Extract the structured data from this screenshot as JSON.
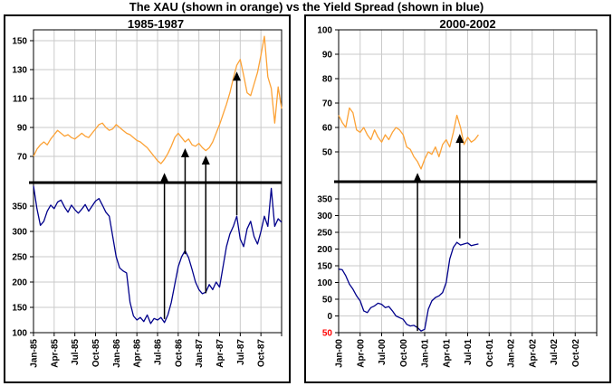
{
  "page_title": "The XAU (shown in orange) vs the Yield Spread (shown in blue)",
  "colors": {
    "xau_orange": "#FCA236",
    "spread_blue": "#00008B",
    "grid": "#CACACA",
    "axis": "#000000",
    "negative_tick_red": "#FF0000",
    "background": "#FFFFFF"
  },
  "chart_data": [
    {
      "type": "line",
      "title": "1985-1987",
      "x_tick_labels": [
        "Jan-85",
        "Apr-85",
        "Jul-85",
        "Oct-85",
        "Jan-86",
        "Apr-86",
        "Jul-86",
        "Oct-86",
        "Jan-87",
        "Apr-87",
        "Jul-87",
        "Oct-87"
      ],
      "x_months_span": 36,
      "points_per_month": 2,
      "upper_axis": {
        "series": "XAU",
        "ticks": [
          150,
          130,
          110,
          90,
          70
        ]
      },
      "lower_axis": {
        "series": "Yield Spread",
        "ticks": [
          350,
          300,
          250,
          200,
          150,
          100
        ]
      },
      "series": [
        {
          "name": "Yield Spread",
          "axis": "lower",
          "color_key": "spread_blue",
          "values": [
            390,
            345,
            312,
            320,
            340,
            352,
            345,
            358,
            362,
            348,
            338,
            352,
            343,
            336,
            344,
            353,
            340,
            350,
            360,
            365,
            352,
            338,
            330,
            290,
            250,
            228,
            222,
            218,
            160,
            133,
            125,
            130,
            122,
            135,
            118,
            128,
            125,
            130,
            120,
            135,
            160,
            195,
            230,
            250,
            262,
            248,
            225,
            200,
            185,
            177,
            180,
            195,
            185,
            200,
            190,
            230,
            270,
            295,
            310,
            330,
            285,
            270,
            305,
            320,
            290,
            275,
            300,
            330,
            310,
            385,
            310,
            325,
            318
          ]
        },
        {
          "name": "XAU",
          "axis": "upper",
          "color_key": "xau_orange",
          "values": [
            70,
            75,
            78,
            80,
            78,
            82,
            85,
            88,
            86,
            84,
            85,
            83,
            82,
            84,
            86,
            84,
            83,
            86,
            89,
            92,
            93,
            90,
            88,
            89,
            92,
            90,
            88,
            86,
            85,
            83,
            81,
            80,
            78,
            76,
            73,
            70,
            67,
            65,
            68,
            72,
            77,
            83,
            86,
            83,
            80,
            82,
            78,
            77,
            79,
            76,
            74,
            76,
            80,
            86,
            92,
            99,
            106,
            114,
            124,
            133,
            137,
            126,
            114,
            112,
            120,
            128,
            140,
            153,
            125,
            117,
            93,
            118,
            103
          ]
        }
      ],
      "arrows": [
        {
          "x_month": 19.0,
          "from_value": 127,
          "to_value": 58
        },
        {
          "x_month": 22.0,
          "from_value": 255,
          "to_value": 75
        },
        {
          "x_month": 25.0,
          "from_value": 178,
          "to_value": 70
        },
        {
          "x_month": 29.5,
          "from_value": 332,
          "to_value": 128
        }
      ]
    },
    {
      "type": "line",
      "title": "2000-2002",
      "x_tick_labels": [
        "Jan-00",
        "Apr-00",
        "Jul-00",
        "Oct-00",
        "Jan-01",
        "Apr-01",
        "Jul-01",
        "Oct-01",
        "Jan-02",
        "Apr-02",
        "Jul-02",
        "Oct-02"
      ],
      "x_months_span": 36,
      "points_per_month": 2,
      "upper_axis": {
        "series": "XAU",
        "ticks": [
          100,
          90,
          80,
          70,
          60,
          50
        ]
      },
      "lower_axis": {
        "series": "Yield Spread",
        "ticks": [
          350,
          300,
          250,
          200,
          150,
          100,
          50,
          0,
          -50
        ]
      },
      "series": [
        {
          "name": "Yield Spread",
          "axis": "lower",
          "color_key": "spread_blue",
          "values": [
            140,
            138,
            120,
            95,
            80,
            60,
            45,
            15,
            10,
            25,
            30,
            38,
            35,
            25,
            28,
            15,
            0,
            -5,
            -10,
            -25,
            -30,
            -28,
            -35,
            -45,
            -40,
            20,
            45,
            55,
            60,
            70,
            100,
            170,
            205,
            220,
            212,
            215,
            218,
            210,
            213,
            215
          ]
        },
        {
          "name": "XAU",
          "axis": "upper",
          "color_key": "xau_orange",
          "values": [
            65,
            62,
            60,
            68,
            66,
            59,
            58,
            60,
            57,
            55,
            59,
            56,
            54,
            57,
            55,
            58,
            60,
            59,
            57,
            52,
            51,
            48,
            46,
            43,
            47,
            50,
            49,
            52,
            48,
            53,
            55,
            52,
            58,
            65,
            60,
            53,
            56,
            54,
            55,
            57
          ]
        }
      ],
      "arrows": [
        {
          "x_month": 11.0,
          "from_value": -45,
          "to_value": 41
        },
        {
          "x_month": 16.9,
          "from_value": 232,
          "to_value": 57
        }
      ]
    }
  ]
}
